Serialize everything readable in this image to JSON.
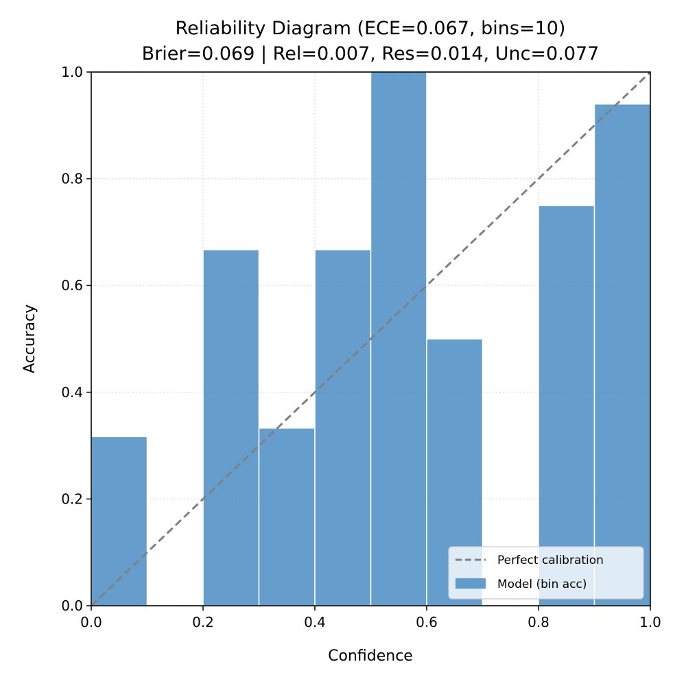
{
  "chart_data": {
    "type": "bar",
    "title": "Reliability Diagram (ECE=0.067, bins=10)",
    "subtitle": "Brier=0.069 | Rel=0.007, Res=0.014, Unc=0.077",
    "xlabel": "Confidence",
    "ylabel": "Accuracy",
    "xlim": [
      0,
      1
    ],
    "ylim": [
      0,
      1
    ],
    "xticks": [
      "0.0",
      "0.2",
      "0.4",
      "0.6",
      "0.8",
      "1.0"
    ],
    "yticks": [
      "0.0",
      "0.2",
      "0.4",
      "0.6",
      "0.8",
      "1.0"
    ],
    "grid": true,
    "legend_placement": "lower-right",
    "bin_edges": [
      0.0,
      0.1,
      0.2,
      0.3,
      0.4,
      0.5,
      0.6,
      0.7,
      0.8,
      0.9,
      1.0
    ],
    "series": [
      {
        "name": "Model (bin acc)",
        "type": "bar",
        "values": [
          0.317,
          0.0,
          0.667,
          0.333,
          0.667,
          1.0,
          0.5,
          0.0,
          0.75,
          0.94
        ],
        "color": "#4a8dc3"
      },
      {
        "name": "Perfect calibration",
        "type": "line",
        "x": [
          0.0,
          1.0
        ],
        "y": [
          0.0,
          1.0
        ],
        "color": "#808080",
        "style": "dashed"
      }
    ]
  }
}
